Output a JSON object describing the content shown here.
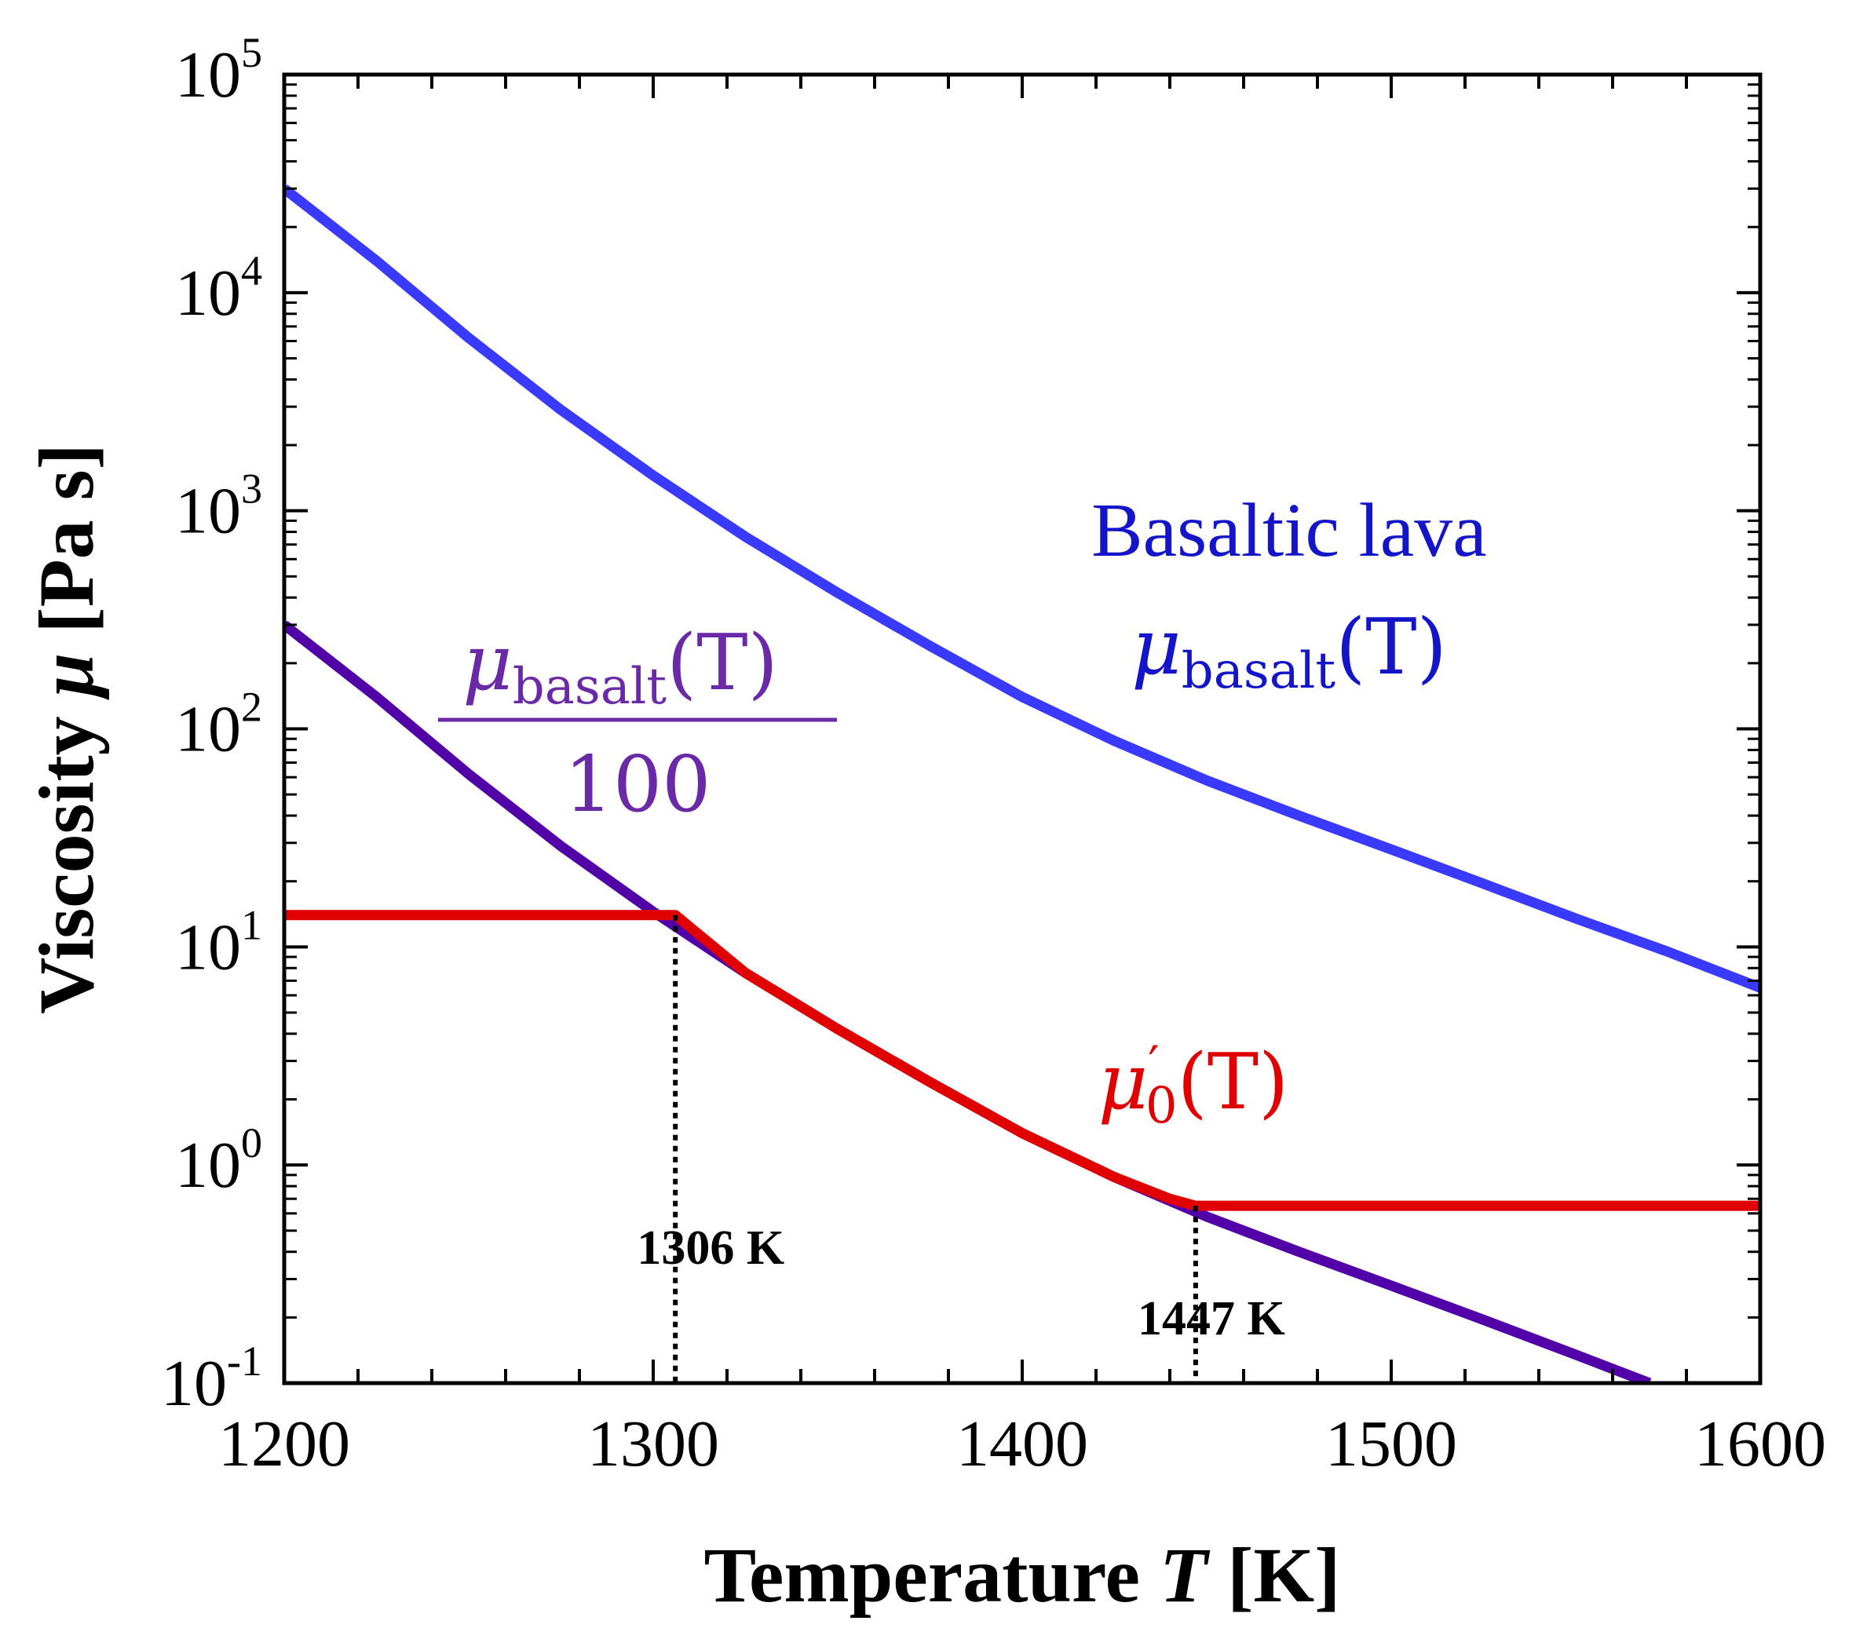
{
  "chart_data": {
    "type": "line",
    "title": "",
    "xlabel": {
      "prefix": "Temperature ",
      "var": "T",
      "suffix": " [K]"
    },
    "ylabel": {
      "prefix": "Viscosity ",
      "var": "μ",
      "suffix": " [Pa s]"
    },
    "xlim": [
      1200,
      1600
    ],
    "ylim": [
      0.1,
      100000
    ],
    "yscale": "log",
    "grid": false,
    "x_ticks": [
      "1200",
      "1300",
      "1400",
      "1500",
      "1600"
    ],
    "y_ticks": [
      {
        "base": "10",
        "exp": "-1",
        "value": 0.1
      },
      {
        "base": "10",
        "exp": "0",
        "value": 1
      },
      {
        "base": "10",
        "exp": "1",
        "value": 10
      },
      {
        "base": "10",
        "exp": "2",
        "value": 100
      },
      {
        "base": "10",
        "exp": "3",
        "value": 1000
      },
      {
        "base": "10",
        "exp": "4",
        "value": 10000
      },
      {
        "base": "10",
        "exp": "5",
        "value": 100000
      }
    ],
    "series": [
      {
        "label": {
          "line1": "Basaltic lava",
          "mu": "μ",
          "sub": "basalt",
          "arg": "(T)"
        },
        "color": "#3a3aff",
        "x": [
          1200,
          1225,
          1250,
          1275,
          1300,
          1325,
          1350,
          1375,
          1400,
          1425,
          1450,
          1475,
          1500,
          1525,
          1550,
          1575,
          1600
        ],
        "y": [
          30000,
          14000,
          6200,
          2900,
          1450,
          760,
          420,
          240,
          140,
          88,
          58,
          40,
          28,
          19.5,
          13.5,
          9.5,
          6.5
        ]
      },
      {
        "label": {
          "mu": "μ",
          "sub": "basalt",
          "arg": "(T)",
          "denominator": "100"
        },
        "color": "#5200a8",
        "x": [
          1200,
          1225,
          1250,
          1275,
          1300,
          1325,
          1350,
          1375,
          1400,
          1425,
          1450,
          1475,
          1500,
          1525,
          1550,
          1570
        ],
        "y": [
          300,
          140,
          62,
          29,
          14.5,
          7.6,
          4.2,
          2.4,
          1.4,
          0.88,
          0.58,
          0.4,
          0.28,
          0.195,
          0.135,
          0.1
        ]
      },
      {
        "label": {
          "mu": "μ",
          "prime": "′",
          "sub": "0",
          "arg": "(T)"
        },
        "color": "#e00000",
        "x": [
          1200,
          1306,
          1325,
          1350,
          1375,
          1400,
          1425,
          1440,
          1447,
          1600
        ],
        "y": [
          14,
          14,
          7.6,
          4.2,
          2.4,
          1.4,
          0.88,
          0.7,
          0.65,
          0.65
        ]
      }
    ],
    "annotations": [
      {
        "text": "1306 K",
        "x": 1306,
        "y": 14
      },
      {
        "text": "1447 K",
        "x": 1447,
        "y": 0.65
      }
    ]
  }
}
